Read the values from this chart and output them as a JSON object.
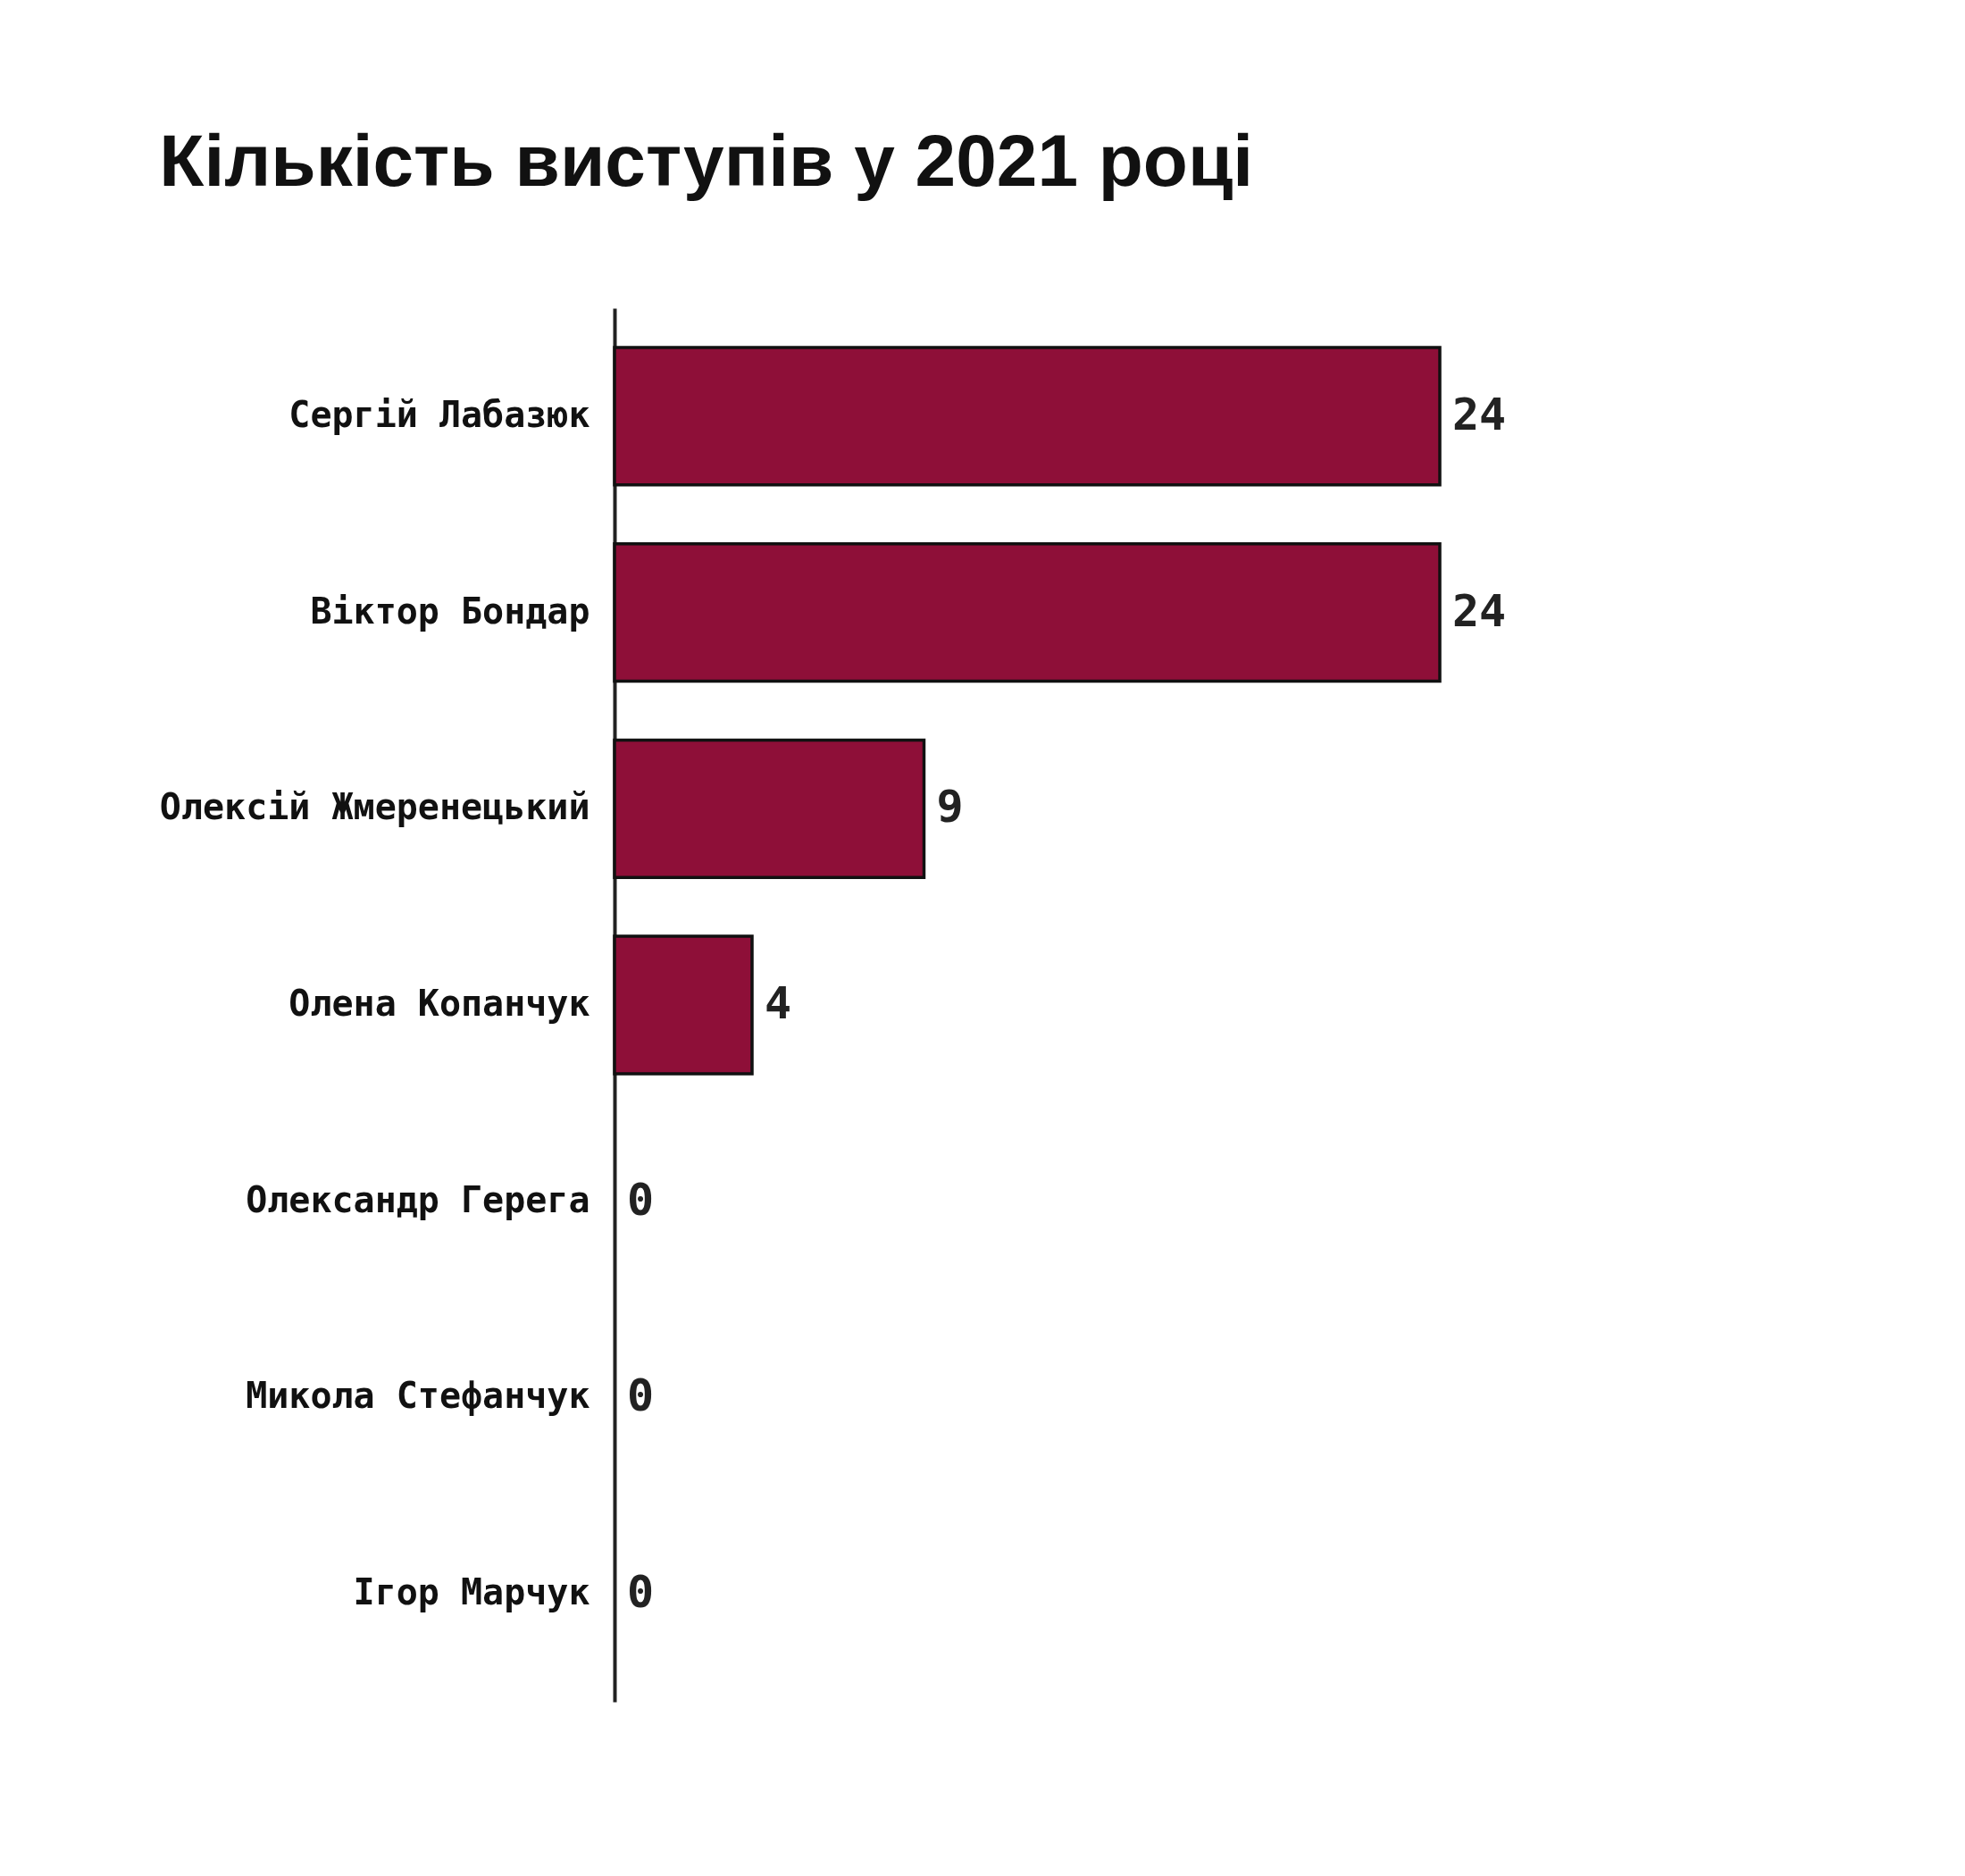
{
  "chart_data": {
    "type": "bar",
    "orientation": "horizontal",
    "title": "Кількість виступів у 2021 році",
    "categories": [
      "Сергій Лабазюк",
      "Віктор Бондар",
      "Олексій Жмеренецький",
      "Олена Копанчук",
      "Олександр Герега",
      "Микола Стефанчук",
      "Ігор Марчук"
    ],
    "values": [
      24,
      24,
      9,
      4,
      0,
      0,
      0
    ],
    "color": "#8e0f38",
    "data_labels": true
  }
}
